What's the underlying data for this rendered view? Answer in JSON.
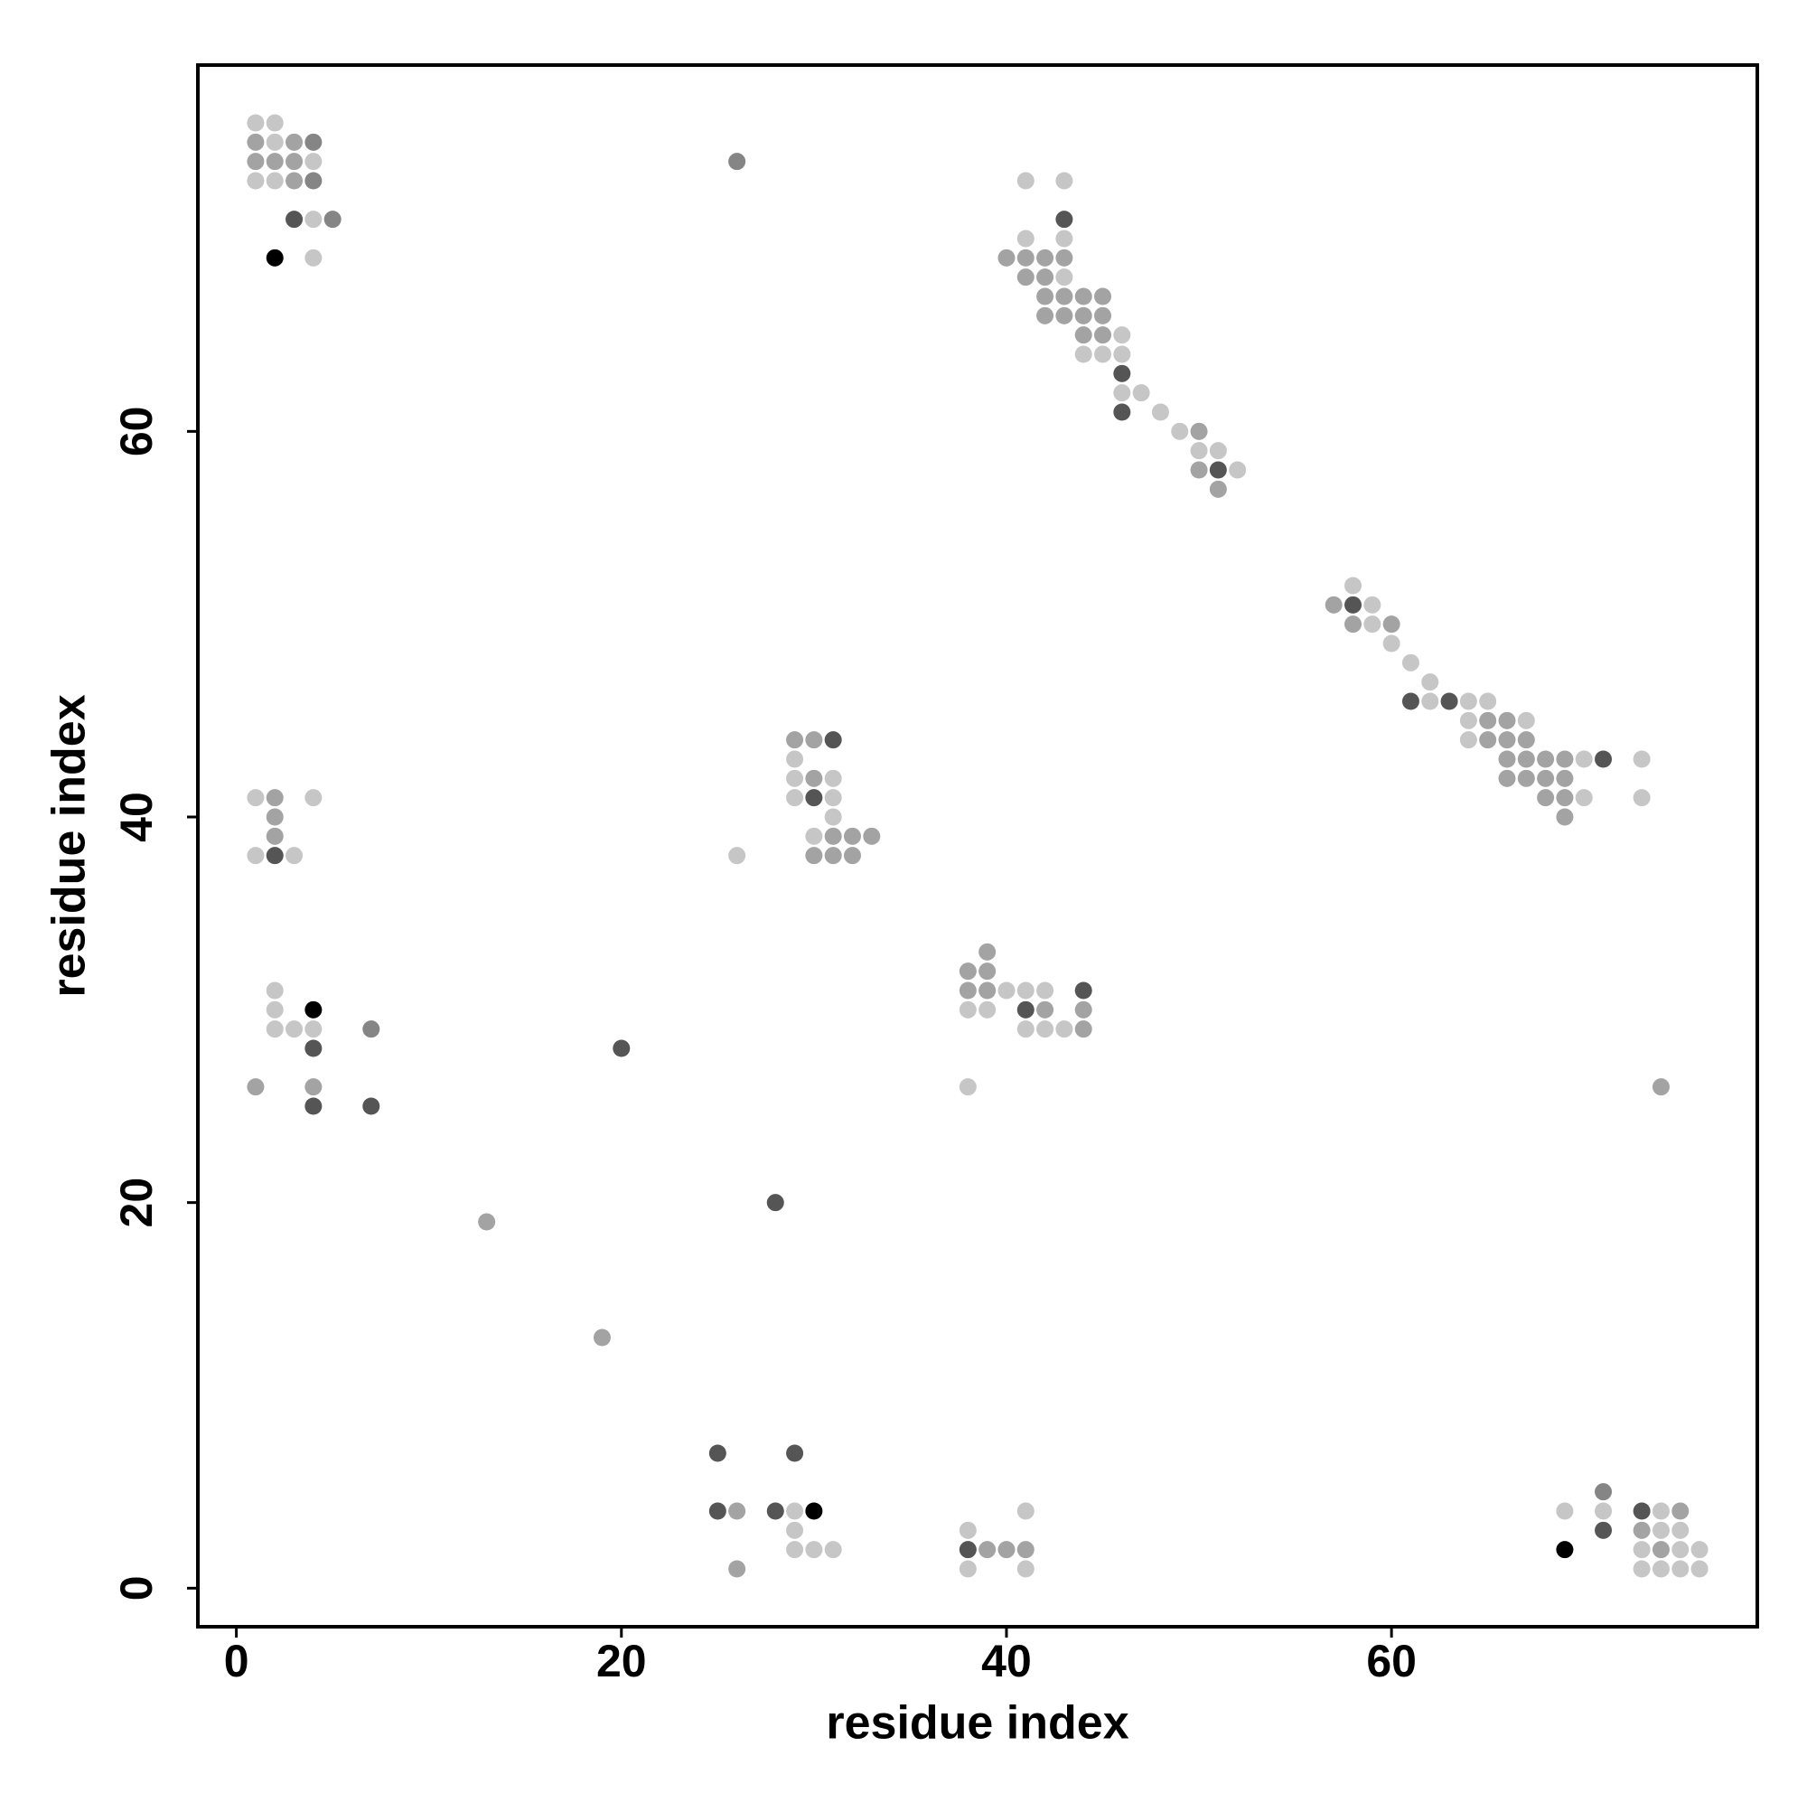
{
  "chart_data": {
    "type": "scatter",
    "x_label": "residue index",
    "y_label": "residue index",
    "xlim": [
      -2,
      79
    ],
    "ylim": [
      -2,
      79
    ],
    "xticks": [
      0,
      20,
      40,
      60
    ],
    "yticks": [
      0,
      20,
      40,
      60
    ],
    "grid": false,
    "series": [
      {
        "color": "#c6c6c6",
        "x": [
          1,
          2,
          2,
          4,
          1,
          2,
          4,
          4,
          41,
          43,
          41,
          43,
          43,
          46,
          44,
          45,
          46,
          46,
          47,
          48,
          49,
          50,
          51,
          52,
          58,
          59,
          59,
          60,
          61,
          62,
          62,
          64,
          65,
          64,
          67,
          64,
          70,
          73,
          70,
          73,
          29,
          29,
          31,
          29,
          31,
          31,
          30,
          26,
          1,
          4,
          1,
          3,
          2,
          2,
          2,
          3,
          4,
          40,
          41,
          42,
          38,
          39,
          41,
          42,
          43,
          38,
          29,
          41,
          69,
          71,
          74,
          29,
          38,
          74,
          75,
          29,
          30,
          31,
          73,
          75,
          76,
          38,
          41,
          73,
          74,
          75,
          76
        ],
        "values": [
          76,
          76,
          75,
          74,
          73,
          73,
          71,
          69,
          73,
          73,
          70,
          70,
          68,
          65,
          64,
          64,
          64,
          62,
          62,
          61,
          60,
          59,
          59,
          58,
          52,
          51,
          50,
          49,
          48,
          47,
          46,
          46,
          46,
          45,
          45,
          44,
          43,
          43,
          41,
          41,
          43,
          42,
          42,
          41,
          41,
          40,
          39,
          38,
          41,
          41,
          38,
          38,
          31,
          30,
          29,
          29,
          29,
          31,
          31,
          31,
          30,
          30,
          29,
          29,
          29,
          26,
          4,
          4,
          4,
          4,
          4,
          3,
          3,
          3,
          3,
          2,
          2,
          2,
          2,
          2,
          2,
          1,
          1,
          1,
          1,
          1,
          1
        ]
      },
      {
        "color": "#a3a3a3",
        "x": [
          1,
          3,
          1,
          2,
          3,
          3,
          40,
          41,
          42,
          43,
          41,
          42,
          42,
          43,
          44,
          45,
          42,
          43,
          44,
          45,
          44,
          45,
          50,
          50,
          51,
          57,
          58,
          60,
          65,
          66,
          65,
          66,
          67,
          66,
          67,
          68,
          69,
          66,
          67,
          68,
          69,
          68,
          69,
          69,
          29,
          30,
          30,
          31,
          32,
          33,
          30,
          31,
          32,
          2,
          2,
          2,
          1,
          4,
          74,
          13,
          19,
          39,
          38,
          39,
          38,
          39,
          42,
          44,
          44,
          26,
          75,
          73,
          39,
          40,
          41,
          74,
          26
        ],
        "values": [
          75,
          75,
          74,
          74,
          74,
          73,
          69,
          69,
          69,
          69,
          68,
          68,
          67,
          67,
          67,
          67,
          66,
          66,
          66,
          66,
          65,
          65,
          60,
          58,
          57,
          51,
          50,
          50,
          45,
          45,
          44,
          44,
          44,
          43,
          43,
          43,
          43,
          42,
          42,
          42,
          42,
          41,
          41,
          40,
          44,
          44,
          42,
          39,
          39,
          39,
          38,
          38,
          38,
          41,
          40,
          39,
          26,
          26,
          26,
          19,
          13,
          33,
          32,
          32,
          31,
          31,
          30,
          30,
          29,
          4,
          4,
          3,
          2,
          2,
          2,
          2,
          1
        ]
      },
      {
        "color": "#858585",
        "x": [
          4,
          4,
          5,
          26,
          7,
          71
        ],
        "values": [
          75,
          73,
          71,
          74,
          29,
          5
        ]
      },
      {
        "color": "#555555",
        "x": [
          3,
          43,
          46,
          46,
          51,
          58,
          61,
          63,
          71,
          31,
          30,
          2,
          4,
          20,
          4,
          7,
          44,
          41,
          28,
          25,
          29,
          25,
          28,
          73,
          71,
          38
        ],
        "values": [
          71,
          71,
          63,
          61,
          58,
          51,
          46,
          46,
          43,
          44,
          41,
          38,
          28,
          28,
          25,
          25,
          31,
          30,
          20,
          7,
          7,
          4,
          4,
          4,
          3,
          2
        ]
      },
      {
        "color": "#000000",
        "x": [
          2,
          4,
          30,
          69
        ],
        "values": [
          69,
          30,
          4,
          2
        ]
      }
    ]
  }
}
